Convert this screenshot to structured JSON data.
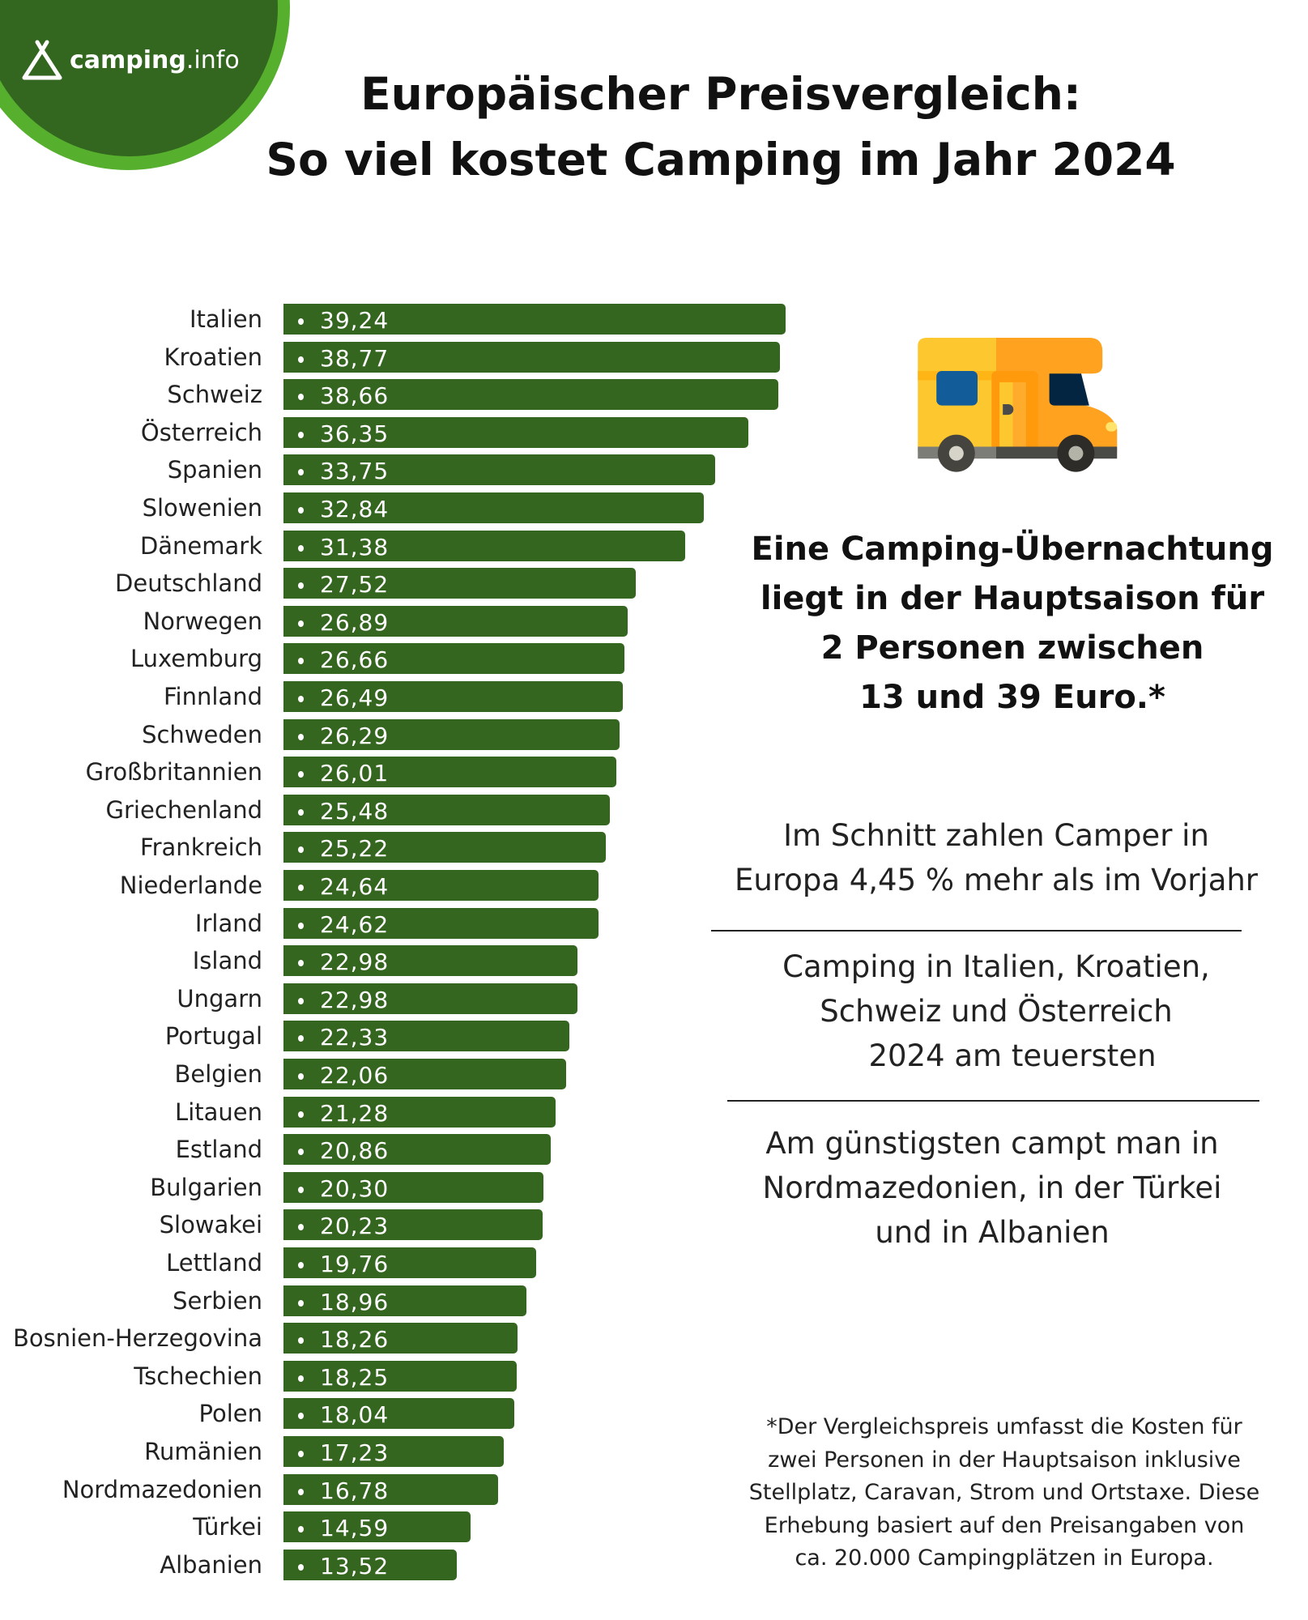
{
  "logo": {
    "brand_bold": "camping",
    "brand_light": ".info",
    "colors": {
      "disc": "#33661f",
      "ring": "#56b02e"
    }
  },
  "header": {
    "title_line1": "Europäischer Preisvergleich:",
    "title_line2": "So viel kostet Camping im Jahr 2024"
  },
  "chart_data": {
    "type": "bar",
    "orientation": "horizontal",
    "bar_color": "#346620",
    "categories": [
      "Italien",
      "Kroatien",
      "Schweiz",
      "Österreich",
      "Spanien",
      "Slowenien",
      "Dänemark",
      "Deutschland",
      "Norwegen",
      "Luxemburg",
      "Finnland",
      "Schweden",
      "Großbritannien",
      "Griechenland",
      "Frankreich",
      "Niederlande",
      "Irland",
      "Island",
      "Ungarn",
      "Portugal",
      "Belgien",
      "Litauen",
      "Estland",
      "Bulgarien",
      "Slowakei",
      "Lettland",
      "Serbien",
      "Bosnien-Herzegovina",
      "Tschechien",
      "Polen",
      "Rumänien",
      "Nordmazedonien",
      "Türkei",
      "Albanien"
    ],
    "values": [
      39.24,
      38.77,
      38.66,
      36.35,
      33.75,
      32.84,
      31.38,
      27.52,
      26.89,
      26.66,
      26.49,
      26.29,
      26.01,
      25.48,
      25.22,
      24.64,
      24.62,
      22.98,
      22.98,
      22.33,
      22.06,
      21.28,
      20.86,
      20.3,
      20.23,
      19.76,
      18.96,
      18.26,
      18.25,
      18.04,
      17.23,
      16.78,
      14.59,
      13.52
    ],
    "value_labels": [
      "39,24",
      "38,77",
      "38,66",
      "36,35",
      "33,75",
      "32,84",
      "31,38",
      "27,52",
      "26,89",
      "26,66",
      "26,49",
      "26,29",
      "26,01",
      "25,48",
      "25,22",
      "24,64",
      "24,62",
      "22,98",
      "22,98",
      "22,33",
      "22,06",
      "21,28",
      "20,86",
      "20,30",
      "20,23",
      "19,76",
      "18,96",
      "18,26",
      "18,25",
      "18,04",
      "17,23",
      "16,78",
      "14,59",
      "13,52"
    ],
    "grid": false,
    "legend": "none"
  },
  "side": {
    "icon": "camper-van-icon",
    "headline": [
      "Eine Camping-Übernachtung",
      "liegt in der Hauptsaison für",
      "2 Personen zwischen",
      "13 und 39 Euro.*"
    ],
    "fact1": [
      "Im Schnitt zahlen Camper in",
      "Europa 4,45 % mehr als im Vorjahr"
    ],
    "fact2": [
      "Camping in Italien, Kroatien,",
      "Schweiz und Österreich",
      "2024 am teuersten"
    ],
    "fact3": [
      "Am günstigsten campt man in",
      "Nordmazedonien, in der Türkei",
      "und in Albanien"
    ],
    "footnote": [
      "*Der Vergleichspreis umfasst die Kosten für",
      "zwei Personen in der Hauptsaison inklusive",
      "Stellplatz, Caravan, Strom und Ortstaxe. Diese",
      "Erhebung basiert auf den Preisangaben von",
      "ca. 20.000 Campingplätzen in Europa."
    ]
  }
}
